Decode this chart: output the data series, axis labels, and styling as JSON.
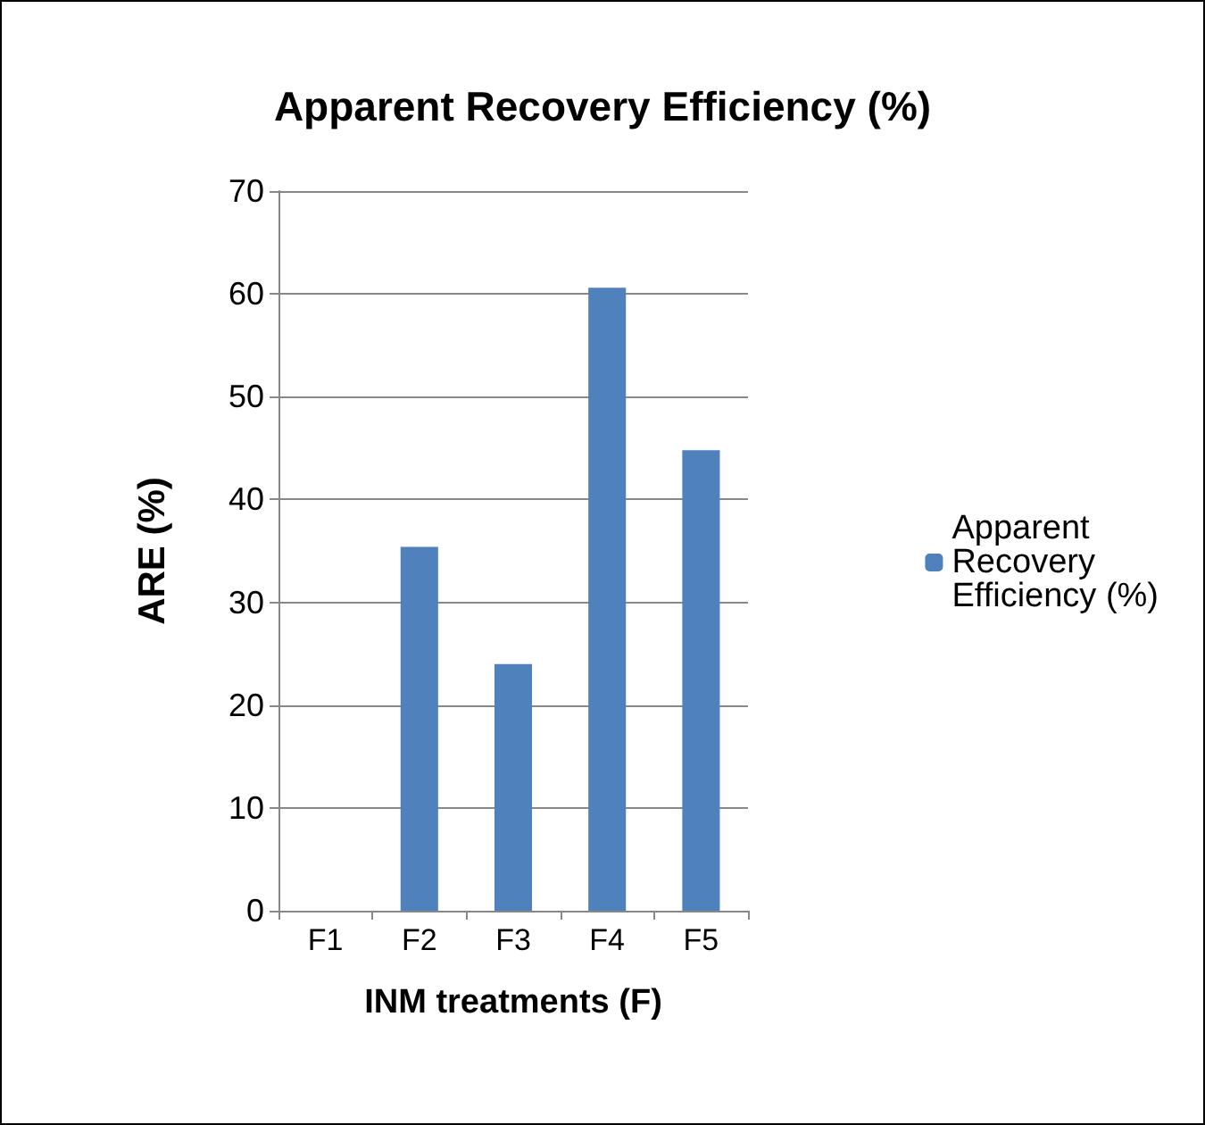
{
  "chart_data": {
    "type": "bar",
    "title": "Apparent Recovery Efficiency (%)",
    "xlabel": "INM treatments (F)",
    "ylabel": "ARE (%)",
    "categories": [
      "F1",
      "F2",
      "F3",
      "F4",
      "F5"
    ],
    "series": [
      {
        "name": "Apparent Recovery Efficiency (%)",
        "color": "#4f81bd",
        "values": [
          0,
          35.4,
          24.0,
          60.6,
          44.8
        ]
      }
    ],
    "ylim": [
      0,
      70
    ],
    "yticks": [
      0,
      10,
      20,
      30,
      40,
      50,
      60,
      70
    ],
    "grid": "y",
    "legend": "right"
  }
}
